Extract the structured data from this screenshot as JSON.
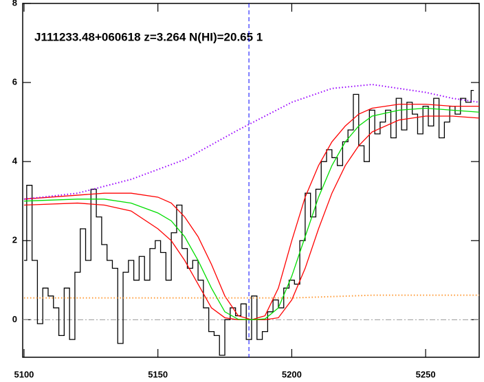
{
  "chart_data": {
    "type": "line",
    "title": "J111233.48+060618 z=3.264 N(HI)=20.65 1",
    "xlim": [
      5099.5,
      5270
    ],
    "ylim": [
      -0.95,
      8
    ],
    "xticks": [
      5100,
      5150,
      5200,
      5250
    ],
    "yticks": [
      0,
      2,
      4,
      6,
      8
    ],
    "vline": 5184,
    "hline": 0,
    "series": [
      {
        "color": "#000000",
        "style": "steps",
        "x": [
          5100,
          5102,
          5104,
          5106,
          5108,
          5110,
          5112,
          5114,
          5116,
          5118,
          5120,
          5122,
          5124,
          5126,
          5128,
          5130,
          5132,
          5134,
          5136,
          5138,
          5140,
          5142,
          5144,
          5146,
          5148,
          5150,
          5152,
          5154,
          5156,
          5158,
          5160,
          5162,
          5164,
          5166,
          5168,
          5170,
          5172,
          5174,
          5176,
          5178,
          5180,
          5182,
          5184,
          5186,
          5188,
          5190,
          5192,
          5194,
          5196,
          5198,
          5200,
          5202,
          5204,
          5206,
          5208,
          5210,
          5212,
          5214,
          5216,
          5218,
          5220,
          5222,
          5224,
          5226,
          5228,
          5230,
          5232,
          5234,
          5236,
          5238,
          5240,
          5242,
          5244,
          5246,
          5248,
          5250,
          5252,
          5254,
          5256,
          5258,
          5260,
          5262,
          5264,
          5266,
          5268
        ],
        "values": [
          1.5,
          3.4,
          1.5,
          -0.1,
          0.8,
          0.6,
          0.3,
          -0.4,
          0.8,
          -0.5,
          1.2,
          2.3,
          1.5,
          3.3,
          2.6,
          1.9,
          1.5,
          1.3,
          -0.6,
          1.2,
          1.5,
          1.0,
          1.6,
          1.0,
          1.8,
          2.0,
          1.7,
          1.0,
          2.2,
          2.9,
          1.8,
          1.3,
          1.5,
          1.0,
          0.3,
          -0.3,
          -0.4,
          -0.9,
          0.0,
          0.3,
          0.1,
          0.4,
          -0.5,
          0.6,
          -0.5,
          -0.3,
          0.2,
          0.5,
          0.3,
          0.8,
          1.0,
          0.9,
          2.0,
          3.2,
          2.6,
          3.3,
          4.0,
          4.3,
          4.1,
          3.9,
          4.5,
          4.8,
          5.7,
          4.4,
          4.0,
          5.3,
          4.7,
          5.0,
          5.3,
          4.6,
          5.6,
          4.8,
          5.5,
          5.2,
          4.7,
          5.4,
          4.9,
          5.6,
          4.6,
          5.0,
          5.4,
          5.2,
          5.6,
          5.5,
          5.8
        ]
      },
      {
        "color": "#ff0000",
        "style": "solid",
        "x": [
          5100,
          5120,
          5130,
          5140,
          5150,
          5155,
          5160,
          5165,
          5170,
          5175,
          5180,
          5185,
          5190,
          5195,
          5200,
          5205,
          5210,
          5215,
          5220,
          5225,
          5230,
          5240,
          5250,
          5260,
          5270
        ],
        "values": [
          3.05,
          3.15,
          3.2,
          3.2,
          3.1,
          2.95,
          2.6,
          2.1,
          1.4,
          0.6,
          0.1,
          0,
          0.1,
          0.8,
          2.0,
          3.1,
          3.9,
          4.5,
          4.9,
          5.2,
          5.35,
          5.45,
          5.45,
          5.4,
          5.4
        ]
      },
      {
        "color": "#ff0000",
        "style": "solid",
        "x": [
          5100,
          5120,
          5130,
          5140,
          5150,
          5155,
          5160,
          5165,
          5170,
          5175,
          5180,
          5185,
          5190,
          5195,
          5200,
          5205,
          5210,
          5215,
          5220,
          5225,
          5230,
          5240,
          5250,
          5260,
          5270
        ],
        "values": [
          2.9,
          2.95,
          2.9,
          2.75,
          2.3,
          2.0,
          1.5,
          0.9,
          0.3,
          0.05,
          0,
          0,
          0,
          0.05,
          0.5,
          1.3,
          2.3,
          3.2,
          3.9,
          4.4,
          4.75,
          5.05,
          5.15,
          5.15,
          5.1
        ]
      },
      {
        "color": "#00dd00",
        "style": "solid",
        "x": [
          5100,
          5120,
          5130,
          5140,
          5150,
          5155,
          5160,
          5165,
          5170,
          5175,
          5180,
          5185,
          5190,
          5195,
          5200,
          5205,
          5210,
          5215,
          5220,
          5225,
          5230,
          5240,
          5250,
          5260,
          5270
        ],
        "values": [
          3.0,
          3.05,
          3.05,
          2.95,
          2.7,
          2.5,
          2.1,
          1.5,
          0.8,
          0.2,
          0.01,
          0,
          0.02,
          0.3,
          1.1,
          2.1,
          3.1,
          3.9,
          4.5,
          4.9,
          5.15,
          5.3,
          5.35,
          5.3,
          5.25
        ]
      },
      {
        "color": "#9900ff",
        "style": "dotted",
        "x": [
          5100,
          5120,
          5140,
          5160,
          5180,
          5200,
          5215,
          5230,
          5250,
          5260,
          5270
        ],
        "values": [
          3.05,
          3.2,
          3.55,
          4.05,
          4.8,
          5.5,
          5.85,
          5.95,
          5.75,
          5.6,
          5.5
        ]
      },
      {
        "color": "#ff9933",
        "style": "dotted",
        "x": [
          5100,
          5150,
          5200,
          5230,
          5270
        ],
        "values": [
          0.55,
          0.55,
          0.55,
          0.62,
          0.62
        ]
      }
    ]
  }
}
